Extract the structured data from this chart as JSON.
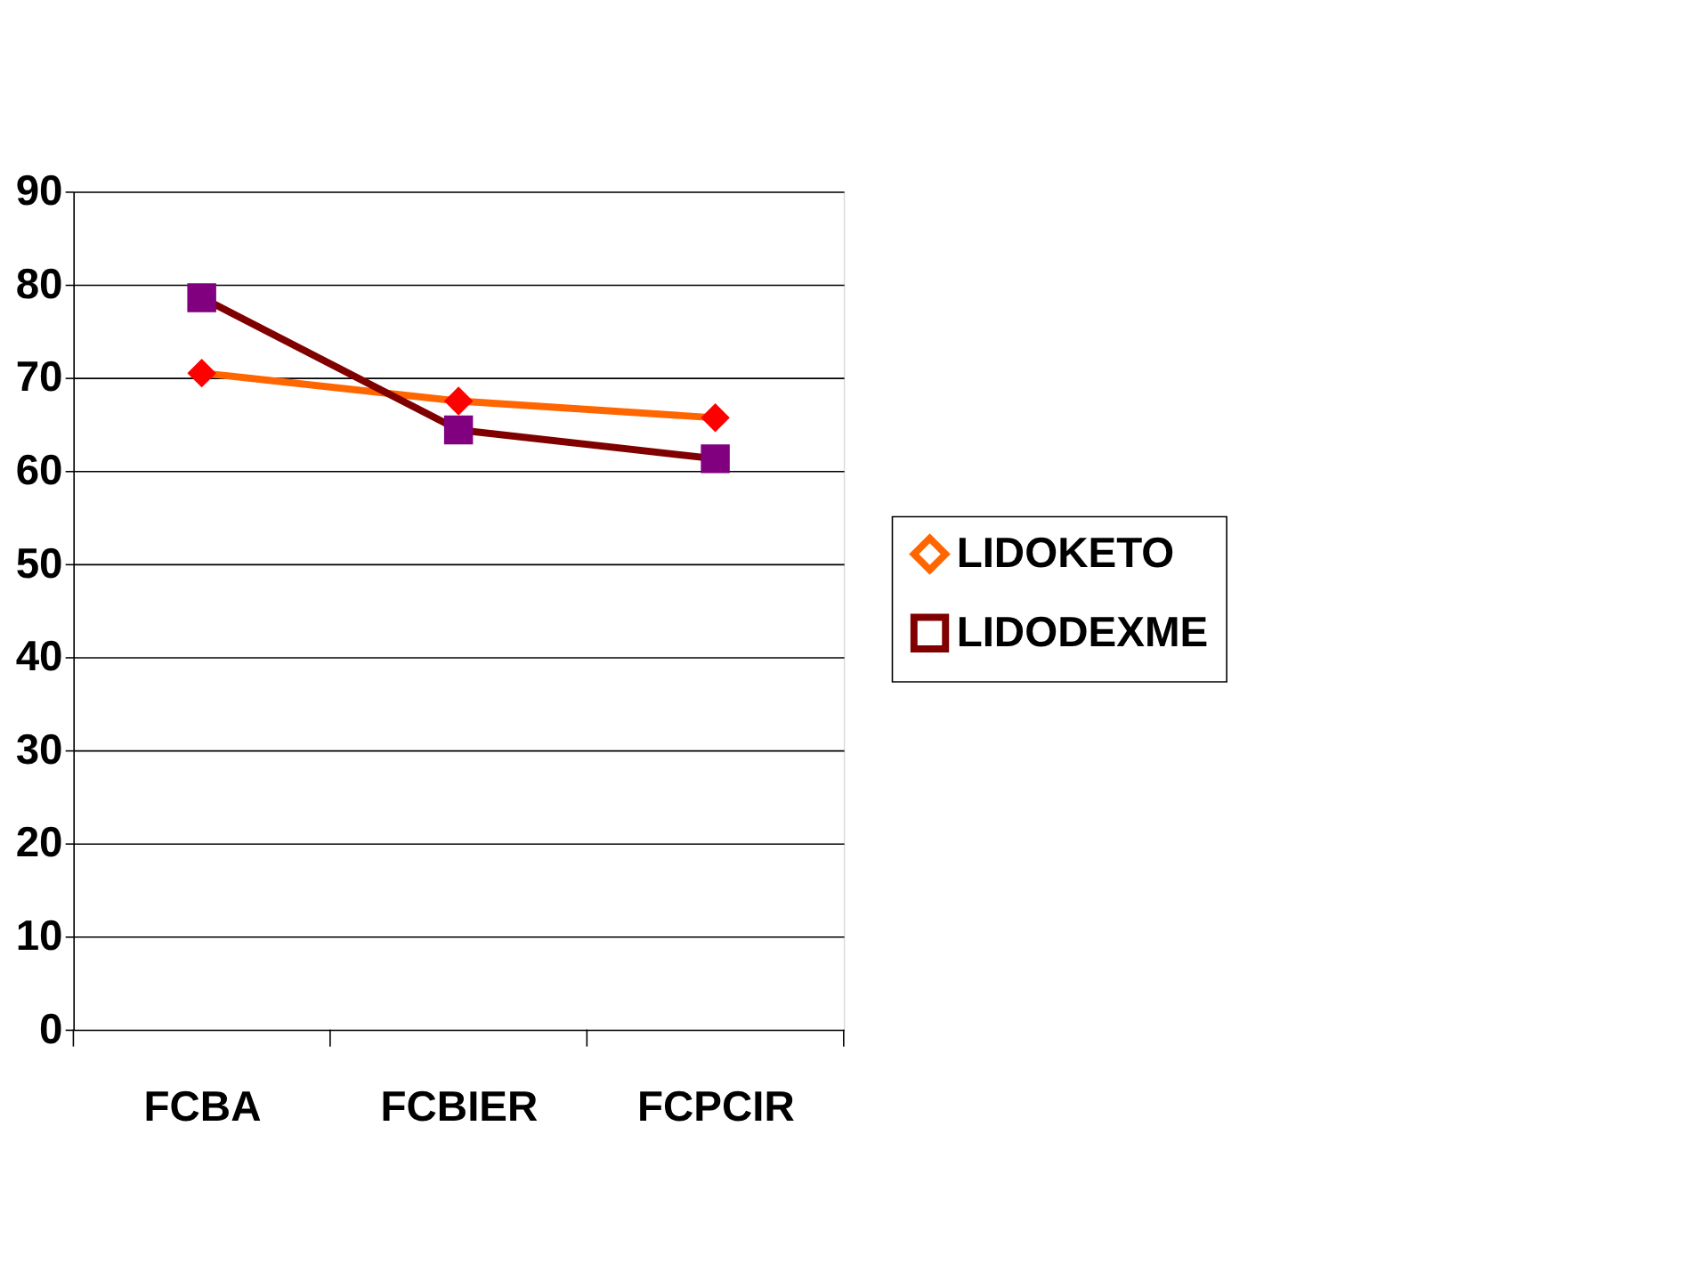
{
  "chart_data": {
    "type": "line",
    "categories": [
      "FCBA",
      "FCBIER",
      "FCPCIR"
    ],
    "series": [
      {
        "name": "LIDOKETO",
        "color": "#ff6600",
        "colors": [
          "#ff0000",
          "#ff0000",
          "#ff0000"
        ],
        "marker": "diamond",
        "values": [
          70.5,
          67.5,
          65.7
        ]
      },
      {
        "name": "LIDODEXME",
        "color": "#800000",
        "colors": [
          "#800080",
          "#800080",
          "#800080"
        ],
        "marker": "square",
        "values": [
          78.6,
          64.4,
          61.3
        ]
      }
    ],
    "ylim": [
      0,
      90
    ],
    "yticks": [
      0,
      10,
      20,
      30,
      40,
      50,
      60,
      70,
      80,
      90
    ],
    "grid": "y",
    "legend": "right",
    "line_style": "solid"
  }
}
